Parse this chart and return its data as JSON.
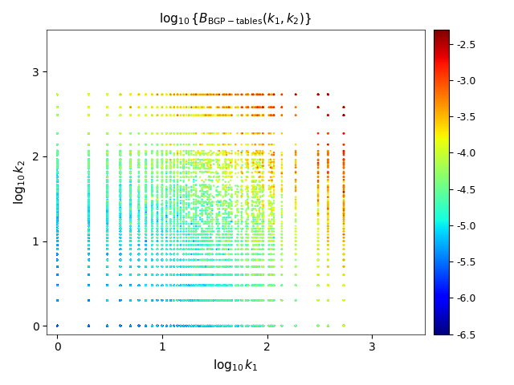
{
  "title": "$\\log_{10}\\{B_{\\mathrm{BGP-tables}}(k_1,k_2)\\}$",
  "xlabel": "$\\log_{10}k_1$",
  "ylabel": "$\\log_{10}k_2$",
  "xlim": [
    -0.1,
    3.5
  ],
  "ylim": [
    -0.1,
    3.5
  ],
  "xticks": [
    0,
    1,
    2,
    3
  ],
  "yticks": [
    0,
    1,
    2,
    3
  ],
  "colorbar_min": -6.5,
  "colorbar_max": -2.3,
  "colorbar_ticks": [
    -2.5,
    -3.0,
    -3.5,
    -4.0,
    -4.5,
    -5.0,
    -5.5,
    -6.0,
    -6.5
  ],
  "colormap": "jet",
  "marker_size": 3,
  "seed": 42,
  "bg_color": "white"
}
